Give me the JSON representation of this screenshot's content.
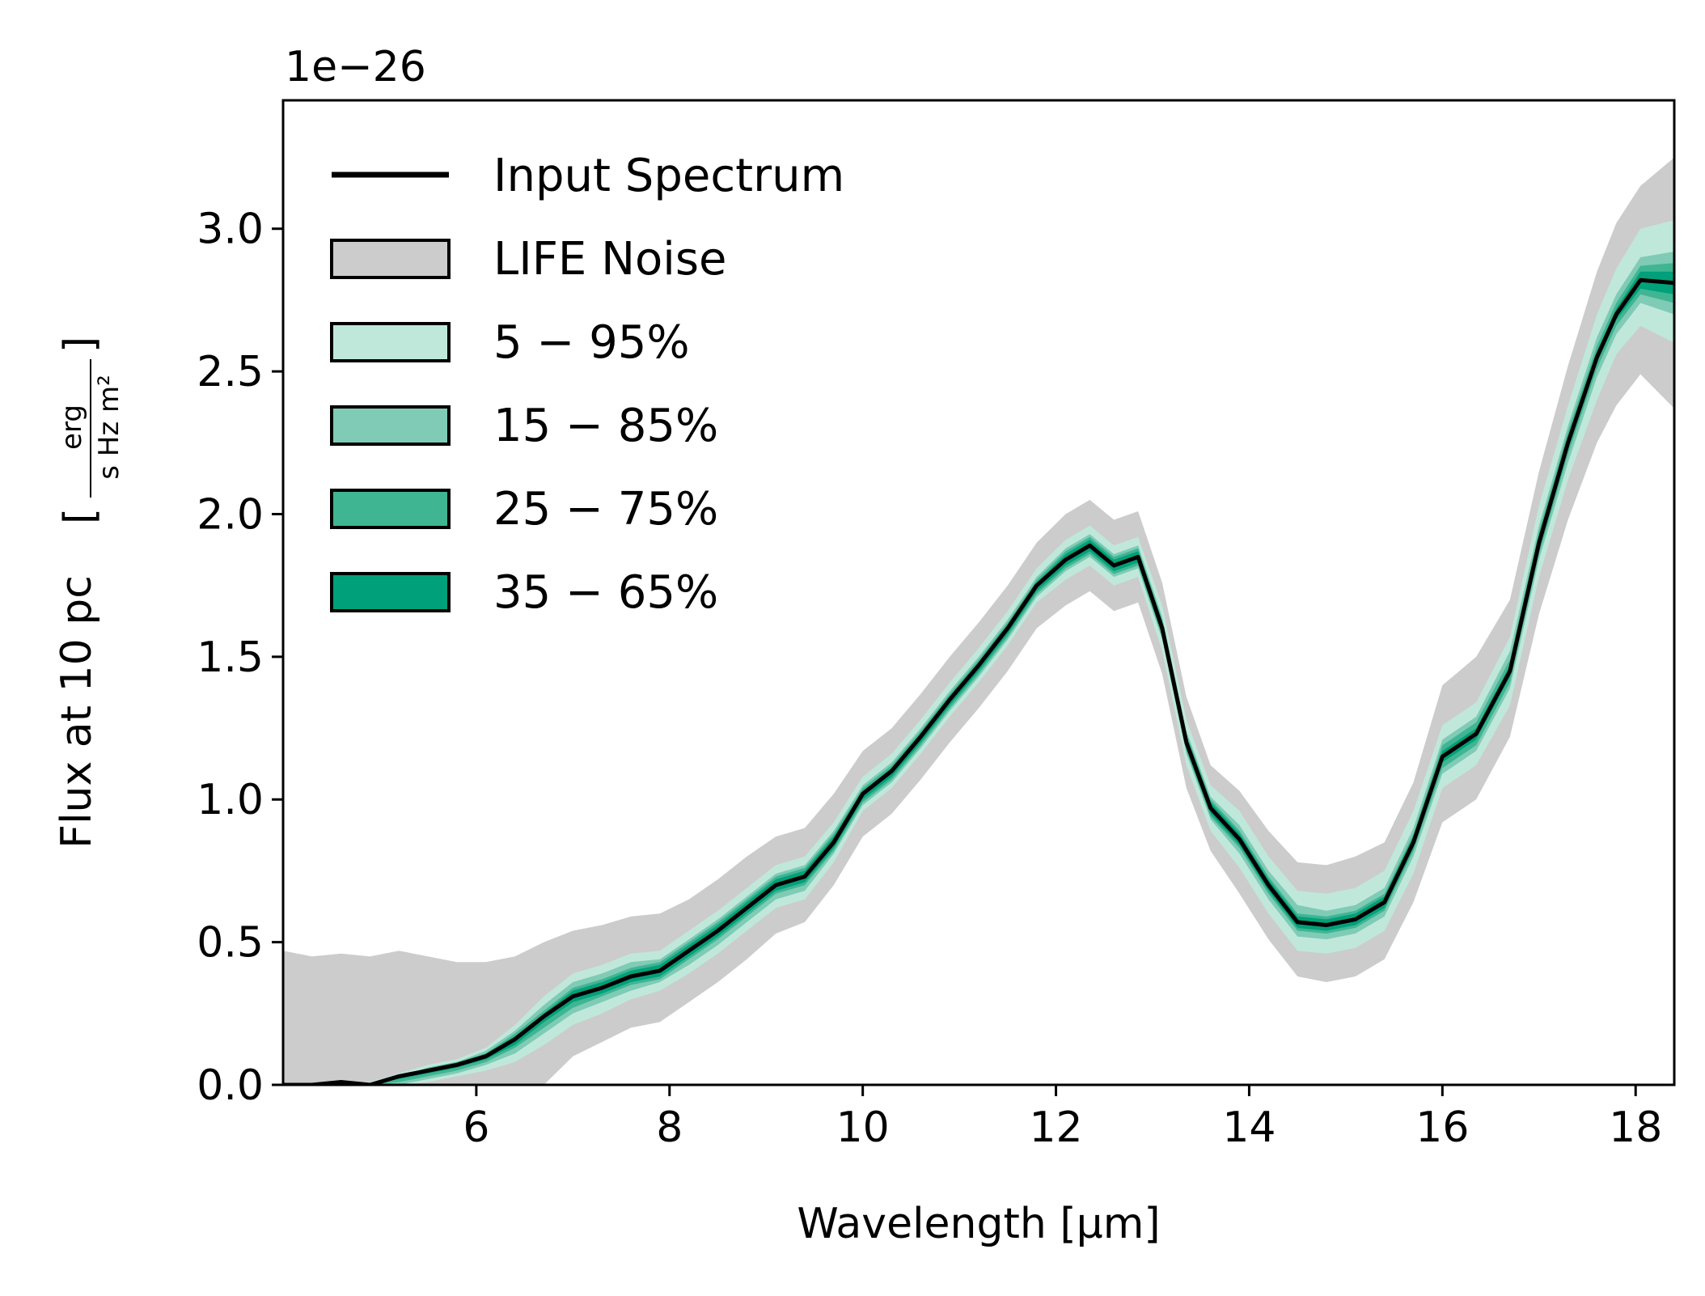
{
  "chart_data": {
    "type": "area",
    "title": "",
    "xlabel": "Wavelength [μm]",
    "ylabel_main": "Flux at 10 pc",
    "ylabel_unit_num": "erg",
    "ylabel_unit_den": "s Hz m²",
    "y_offset_label": "1e−26",
    "xlim": [
      4.0,
      18.4
    ],
    "ylim": [
      0.0,
      3.45
    ],
    "x_ticks": [
      6,
      8,
      10,
      12,
      14,
      16,
      18
    ],
    "x_tick_labels": [
      "6",
      "8",
      "10",
      "12",
      "14",
      "16",
      "18"
    ],
    "y_ticks": [
      0.0,
      0.5,
      1.0,
      1.5,
      2.0,
      2.5,
      3.0
    ],
    "y_tick_labels": [
      "0.0",
      "0.5",
      "1.0",
      "1.5",
      "2.0",
      "2.5",
      "3.0"
    ],
    "legend_position": "top-left",
    "grid": false,
    "x": [
      4.0,
      4.3,
      4.6,
      4.9,
      5.2,
      5.5,
      5.8,
      6.1,
      6.4,
      6.7,
      7.0,
      7.3,
      7.6,
      7.9,
      8.2,
      8.5,
      8.8,
      9.1,
      9.4,
      9.7,
      10.0,
      10.3,
      10.6,
      10.9,
      11.2,
      11.5,
      11.8,
      12.1,
      12.35,
      12.6,
      12.85,
      13.1,
      13.35,
      13.6,
      13.9,
      14.2,
      14.5,
      14.8,
      15.1,
      15.4,
      15.7,
      16.0,
      16.35,
      16.7,
      17.0,
      17.3,
      17.6,
      17.8,
      18.05,
      18.4
    ],
    "series": [
      {
        "name": "Input Spectrum",
        "color": "#000000",
        "values": [
          0.0,
          0.0,
          0.01,
          0.0,
          0.03,
          0.05,
          0.07,
          0.1,
          0.16,
          0.24,
          0.31,
          0.34,
          0.38,
          0.4,
          0.47,
          0.54,
          0.62,
          0.7,
          0.73,
          0.85,
          1.02,
          1.1,
          1.22,
          1.35,
          1.47,
          1.6,
          1.75,
          1.84,
          1.89,
          1.82,
          1.85,
          1.6,
          1.2,
          0.97,
          0.86,
          0.7,
          0.57,
          0.56,
          0.58,
          0.64,
          0.85,
          1.15,
          1.23,
          1.45,
          1.9,
          2.25,
          2.55,
          2.7,
          2.82,
          2.81
        ]
      }
    ],
    "bands": [
      {
        "name": "LIFE Noise",
        "color": "#cccccc",
        "lower": [
          0.0,
          0.0,
          0.0,
          0.0,
          0.0,
          0.0,
          0.0,
          0.0,
          0.0,
          0.0,
          0.1,
          0.15,
          0.2,
          0.22,
          0.29,
          0.36,
          0.44,
          0.53,
          0.57,
          0.7,
          0.87,
          0.95,
          1.07,
          1.2,
          1.32,
          1.45,
          1.6,
          1.68,
          1.73,
          1.66,
          1.69,
          1.44,
          1.04,
          0.82,
          0.67,
          0.51,
          0.38,
          0.36,
          0.38,
          0.44,
          0.64,
          0.92,
          1.0,
          1.22,
          1.65,
          1.98,
          2.25,
          2.38,
          2.49,
          2.37
        ],
        "upper": [
          0.47,
          0.45,
          0.46,
          0.45,
          0.47,
          0.45,
          0.43,
          0.43,
          0.45,
          0.5,
          0.54,
          0.56,
          0.59,
          0.6,
          0.65,
          0.72,
          0.8,
          0.87,
          0.9,
          1.02,
          1.17,
          1.25,
          1.37,
          1.5,
          1.62,
          1.75,
          1.9,
          2.0,
          2.05,
          1.98,
          2.01,
          1.76,
          1.36,
          1.12,
          1.03,
          0.89,
          0.78,
          0.77,
          0.8,
          0.85,
          1.06,
          1.4,
          1.5,
          1.7,
          2.15,
          2.52,
          2.85,
          3.02,
          3.15,
          3.25
        ]
      },
      {
        "name": "5 − 95%",
        "color": "#c0e8da",
        "lower": [
          0.0,
          0.0,
          0.0,
          0.0,
          0.0,
          0.01,
          0.03,
          0.05,
          0.08,
          0.14,
          0.21,
          0.25,
          0.3,
          0.33,
          0.39,
          0.46,
          0.54,
          0.62,
          0.65,
          0.78,
          0.96,
          1.04,
          1.16,
          1.29,
          1.41,
          1.54,
          1.69,
          1.77,
          1.82,
          1.75,
          1.78,
          1.52,
          1.12,
          0.89,
          0.76,
          0.6,
          0.47,
          0.46,
          0.48,
          0.54,
          0.74,
          1.04,
          1.12,
          1.33,
          1.78,
          2.12,
          2.4,
          2.56,
          2.66,
          2.6
        ],
        "upper": [
          0.0,
          0.0,
          0.01,
          0.01,
          0.04,
          0.07,
          0.09,
          0.13,
          0.21,
          0.31,
          0.39,
          0.42,
          0.46,
          0.47,
          0.54,
          0.61,
          0.69,
          0.77,
          0.8,
          0.92,
          1.08,
          1.16,
          1.28,
          1.41,
          1.53,
          1.66,
          1.81,
          1.91,
          1.96,
          1.89,
          1.92,
          1.68,
          1.28,
          1.05,
          0.96,
          0.8,
          0.68,
          0.67,
          0.69,
          0.75,
          0.96,
          1.26,
          1.34,
          1.57,
          2.03,
          2.38,
          2.7,
          2.86,
          3.0,
          3.03
        ]
      },
      {
        "name": "15 − 85%",
        "color": "#7fcbb6",
        "lower": [
          0.0,
          0.0,
          0.0,
          0.0,
          0.0,
          0.02,
          0.04,
          0.07,
          0.11,
          0.18,
          0.25,
          0.29,
          0.33,
          0.36,
          0.42,
          0.49,
          0.57,
          0.65,
          0.68,
          0.81,
          0.98,
          1.06,
          1.18,
          1.31,
          1.43,
          1.56,
          1.71,
          1.8,
          1.85,
          1.78,
          1.81,
          1.56,
          1.16,
          0.93,
          0.81,
          0.65,
          0.52,
          0.51,
          0.53,
          0.59,
          0.8,
          1.09,
          1.17,
          1.39,
          1.84,
          2.18,
          2.48,
          2.63,
          2.74,
          2.7
        ],
        "upper": [
          0.0,
          0.0,
          0.01,
          0.0,
          0.03,
          0.06,
          0.08,
          0.12,
          0.19,
          0.28,
          0.36,
          0.39,
          0.43,
          0.44,
          0.51,
          0.58,
          0.66,
          0.74,
          0.77,
          0.89,
          1.05,
          1.13,
          1.25,
          1.38,
          1.5,
          1.63,
          1.78,
          1.88,
          1.93,
          1.86,
          1.89,
          1.64,
          1.24,
          1.01,
          0.91,
          0.75,
          0.63,
          0.61,
          0.63,
          0.69,
          0.9,
          1.21,
          1.29,
          1.52,
          1.96,
          2.31,
          2.62,
          2.77,
          2.9,
          2.92
        ]
      },
      {
        "name": "25 − 75%",
        "color": "#40b592",
        "lower": [
          0.0,
          0.0,
          0.0,
          0.0,
          0.01,
          0.03,
          0.05,
          0.08,
          0.13,
          0.2,
          0.27,
          0.31,
          0.35,
          0.37,
          0.44,
          0.51,
          0.59,
          0.67,
          0.7,
          0.82,
          0.99,
          1.07,
          1.19,
          1.32,
          1.44,
          1.57,
          1.72,
          1.81,
          1.86,
          1.79,
          1.82,
          1.57,
          1.17,
          0.94,
          0.83,
          0.67,
          0.54,
          0.53,
          0.55,
          0.61,
          0.82,
          1.11,
          1.19,
          1.41,
          1.86,
          2.21,
          2.51,
          2.66,
          2.77,
          2.74
        ],
        "upper": [
          0.0,
          0.0,
          0.01,
          0.0,
          0.03,
          0.06,
          0.08,
          0.11,
          0.18,
          0.26,
          0.34,
          0.37,
          0.41,
          0.43,
          0.5,
          0.57,
          0.65,
          0.73,
          0.76,
          0.88,
          1.04,
          1.12,
          1.24,
          1.37,
          1.49,
          1.62,
          1.77,
          1.87,
          1.92,
          1.85,
          1.88,
          1.63,
          1.23,
          1.0,
          0.89,
          0.73,
          0.6,
          0.59,
          0.61,
          0.67,
          0.88,
          1.19,
          1.27,
          1.49,
          1.94,
          2.29,
          2.59,
          2.74,
          2.87,
          2.88
        ]
      },
      {
        "name": "35 − 65%",
        "color": "#00a07a",
        "lower": [
          0.0,
          0.0,
          0.0,
          0.0,
          0.02,
          0.04,
          0.06,
          0.09,
          0.14,
          0.22,
          0.29,
          0.32,
          0.36,
          0.38,
          0.45,
          0.52,
          0.6,
          0.68,
          0.71,
          0.83,
          1.0,
          1.08,
          1.2,
          1.33,
          1.45,
          1.58,
          1.73,
          1.82,
          1.87,
          1.8,
          1.83,
          1.58,
          1.18,
          0.95,
          0.84,
          0.68,
          0.55,
          0.54,
          0.56,
          0.62,
          0.83,
          1.13,
          1.21,
          1.43,
          1.88,
          2.23,
          2.53,
          2.68,
          2.79,
          2.77
        ],
        "upper": [
          0.0,
          0.0,
          0.01,
          0.0,
          0.03,
          0.05,
          0.07,
          0.11,
          0.17,
          0.25,
          0.33,
          0.36,
          0.4,
          0.42,
          0.49,
          0.56,
          0.64,
          0.72,
          0.75,
          0.87,
          1.03,
          1.11,
          1.23,
          1.36,
          1.48,
          1.61,
          1.76,
          1.86,
          1.91,
          1.84,
          1.87,
          1.62,
          1.22,
          0.99,
          0.88,
          0.72,
          0.59,
          0.58,
          0.6,
          0.66,
          0.87,
          1.17,
          1.25,
          1.47,
          1.92,
          2.27,
          2.57,
          2.72,
          2.85,
          2.85
        ]
      }
    ],
    "legend": [
      {
        "label": "Input Spectrum",
        "kind": "line",
        "color": "#000000"
      },
      {
        "label": "LIFE Noise",
        "kind": "patch",
        "color": "#cccccc"
      },
      {
        "label": "5 − 95%",
        "kind": "patch",
        "color": "#c0e8da"
      },
      {
        "label": "15 − 85%",
        "kind": "patch",
        "color": "#7fcbb6"
      },
      {
        "label": "25 − 75%",
        "kind": "patch",
        "color": "#40b592"
      },
      {
        "label": "35 − 65%",
        "kind": "patch",
        "color": "#00a07a"
      }
    ]
  }
}
